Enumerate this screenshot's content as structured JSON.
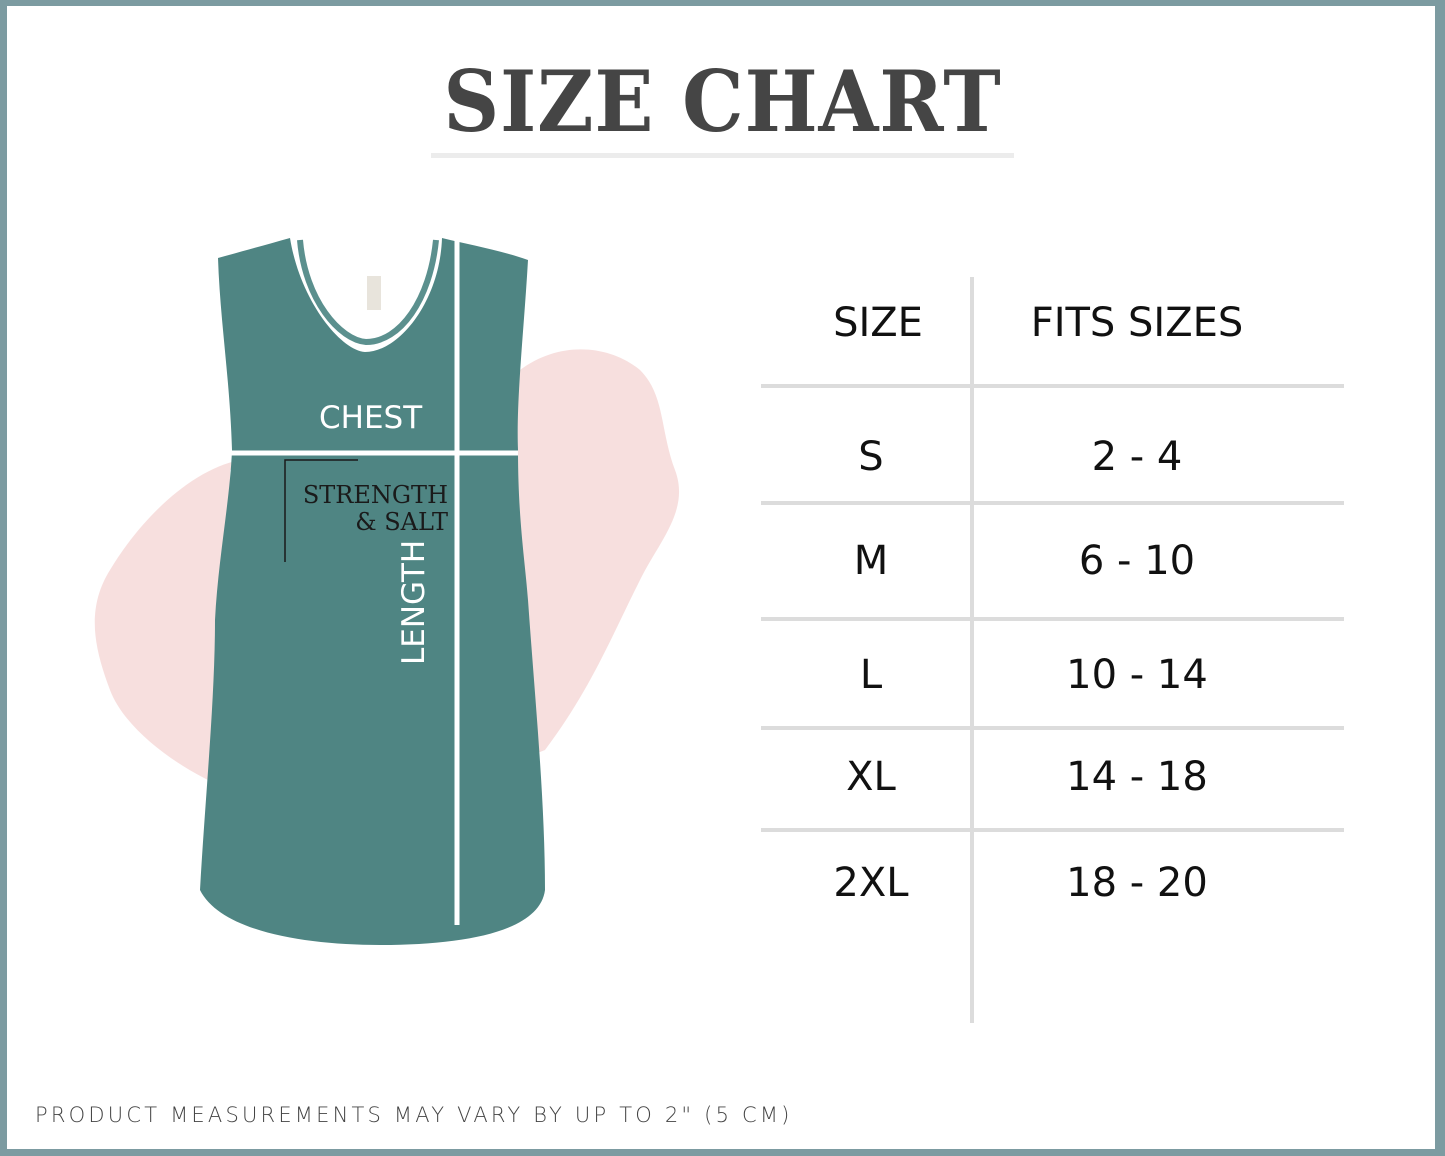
{
  "title": "SIZE CHART",
  "colors": {
    "frame": "#7c9ba1",
    "tank": "#4f8583",
    "splash": "#f5d8d6",
    "rule": "#dcdcdc"
  },
  "garment": {
    "chest_label": "CHEST",
    "length_label": "LENGTH",
    "print_line1": "STRENGTH",
    "print_line2": "& SALT"
  },
  "table": {
    "headers": [
      "SIZE",
      "FITS SIZES"
    ],
    "rows": [
      {
        "size": "S",
        "fits": "2 - 4"
      },
      {
        "size": "M",
        "fits": "6 - 10"
      },
      {
        "size": "L",
        "fits": "10 - 14"
      },
      {
        "size": "XL",
        "fits": "14 - 18"
      },
      {
        "size": "2XL",
        "fits": "18 - 20"
      }
    ]
  },
  "footnote": "PRODUCT MEASUREMENTS MAY VARY BY UP TO 2\" (5 CM)"
}
